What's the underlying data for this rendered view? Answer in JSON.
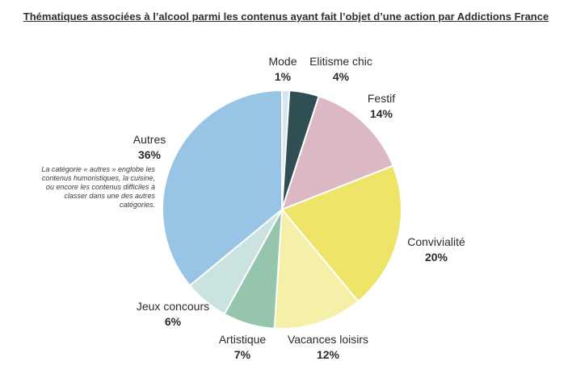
{
  "chart_data": {
    "type": "pie",
    "title": "Thématiques associées à l’alcool parmi les contenus ayant fait l’objet d’une action par Addictions France",
    "slices": [
      {
        "label": "Mode",
        "value": 1,
        "value_label": "1%",
        "color": "#d4e6f1"
      },
      {
        "label": "Elitisme chic",
        "value": 4,
        "value_label": "4%",
        "color": "#2f4f55"
      },
      {
        "label": "Festif",
        "value": 14,
        "value_label": "14%",
        "color": "#dcb8c2"
      },
      {
        "label": "Convivialité",
        "value": 20,
        "value_label": "20%",
        "color": "#eee468"
      },
      {
        "label": "Vacances loisirs",
        "value": 12,
        "value_label": "12%",
        "color": "#f5f0a8"
      },
      {
        "label": "Artistique",
        "value": 7,
        "value_label": "7%",
        "color": "#96c5ae"
      },
      {
        "label": "Jeux concours",
        "value": 6,
        "value_label": "6%",
        "color": "#cbe3e0"
      },
      {
        "label": "Autres",
        "value": 36,
        "value_label": "36%",
        "color": "#98c4e6"
      }
    ],
    "note": "La catégorie « autres » englobe les contenus humoristiques, la cuisine, ou encore les contenus difficiles à classer dans une des autres catégories.",
    "start": "top",
    "direction": "clockwise"
  }
}
